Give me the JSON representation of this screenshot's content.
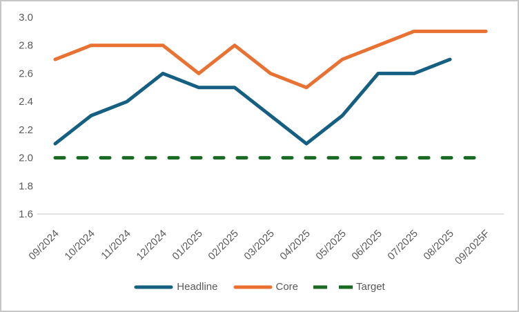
{
  "chart_data": {
    "type": "line",
    "title": "",
    "xlabel": "",
    "ylabel": "",
    "grid": false,
    "legend_position": "bottom",
    "categories": [
      "09/2024",
      "10/2024",
      "11/2024",
      "12/2024",
      "01/2025",
      "02/2025",
      "03/2025",
      "04/2025",
      "05/2025",
      "06/2025",
      "07/2025",
      "08/2025",
      "09/2025F"
    ],
    "series": [
      {
        "name": "Headline",
        "color": "#156082",
        "style": "solid",
        "values": [
          2.1,
          2.3,
          2.4,
          2.6,
          2.5,
          2.5,
          2.3,
          2.1,
          2.3,
          2.6,
          2.6,
          2.7,
          null
        ]
      },
      {
        "name": "Core",
        "color": "#E97132",
        "style": "solid",
        "values": [
          2.7,
          2.8,
          2.8,
          2.8,
          2.6,
          2.8,
          2.6,
          2.5,
          2.7,
          2.8,
          2.9,
          2.9,
          2.9
        ]
      },
      {
        "name": "Target",
        "color": "#196B24",
        "style": "dashed",
        "values": [
          2.0,
          2.0,
          2.0,
          2.0,
          2.0,
          2.0,
          2.0,
          2.0,
          2.0,
          2.0,
          2.0,
          2.0,
          2.0
        ]
      }
    ],
    "yticks": [
      1.6,
      1.8,
      2.0,
      2.2,
      2.4,
      2.6,
      2.8,
      3.0
    ],
    "ylim": [
      1.6,
      3.0
    ],
    "axis_text_color": "#595959",
    "axis_line_color": "#D9D9D9"
  }
}
